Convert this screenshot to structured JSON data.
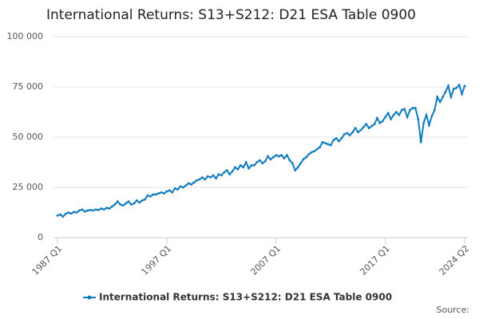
{
  "chart_data": {
    "type": "line",
    "title": "International Returns: S13+S212: D21 ESA Table 0900",
    "source": "Source:",
    "categories": [
      "1987 Q1",
      null,
      null,
      null,
      null,
      null,
      null,
      null,
      null,
      null,
      null,
      null,
      null,
      null,
      null,
      null,
      null,
      null,
      null,
      null,
      null,
      null,
      null,
      null,
      null,
      null,
      null,
      null,
      null,
      null,
      null,
      null,
      null,
      null,
      null,
      null,
      null,
      null,
      null,
      null,
      "1997 Q1",
      null,
      null,
      null,
      null,
      null,
      null,
      null,
      null,
      null,
      null,
      null,
      null,
      null,
      null,
      null,
      null,
      null,
      null,
      null,
      null,
      null,
      null,
      null,
      null,
      null,
      null,
      null,
      null,
      null,
      null,
      null,
      null,
      null,
      null,
      null,
      null,
      null,
      null,
      null,
      "2007 Q1",
      null,
      null,
      null,
      null,
      null,
      null,
      null,
      null,
      null,
      null,
      null,
      null,
      null,
      null,
      null,
      null,
      null,
      null,
      null,
      null,
      null,
      null,
      null,
      null,
      null,
      null,
      null,
      null,
      null,
      null,
      null,
      null,
      null,
      null,
      null,
      null,
      null,
      null,
      null,
      "2017 Q1",
      null,
      null,
      null,
      null,
      null,
      null,
      null,
      null,
      null,
      null,
      null,
      null,
      null,
      null,
      null,
      null,
      null,
      null,
      null,
      null,
      null,
      null,
      null,
      null,
      null,
      null,
      null,
      null,
      "2024 Q2"
    ],
    "series": [
      {
        "name": "International Returns: S13+S212: D21 ESA Table 0900",
        "color": "#0f7cbf",
        "values": [
          11000,
          11500,
          10500,
          11800,
          12500,
          12000,
          12800,
          12500,
          13500,
          14000,
          13000,
          13500,
          13800,
          13500,
          14000,
          13800,
          14500,
          14000,
          14800,
          14500,
          15500,
          16500,
          18000,
          16500,
          16000,
          17000,
          18000,
          16500,
          17000,
          18500,
          17500,
          18500,
          19000,
          21000,
          20500,
          21500,
          21500,
          22000,
          22500,
          22000,
          23000,
          23500,
          22500,
          24500,
          24000,
          25500,
          25000,
          26000,
          27000,
          26500,
          27500,
          28500,
          29000,
          30000,
          29000,
          30500,
          30000,
          31000,
          29500,
          31500,
          31000,
          32500,
          33500,
          31500,
          33000,
          35000,
          34000,
          36000,
          35000,
          37500,
          34500,
          36000,
          36000,
          37500,
          38500,
          37000,
          38000,
          40500,
          39000,
          40000,
          41000,
          40500,
          41000,
          39500,
          41000,
          38500,
          37000,
          33500,
          35000,
          37000,
          39000,
          40000,
          41500,
          42500,
          43000,
          44000,
          45000,
          47500,
          47000,
          46500,
          46000,
          48500,
          49500,
          48000,
          49500,
          51500,
          52000,
          51000,
          52500,
          54500,
          52500,
          53500,
          55000,
          56500,
          54500,
          55500,
          56500,
          59500,
          57000,
          58000,
          60000,
          62000,
          59000,
          61000,
          62500,
          61000,
          63500,
          64000,
          60000,
          63500,
          64500,
          64500,
          59000,
          47500,
          57000,
          61000,
          56000,
          60500,
          63500,
          70000,
          67500,
          70000,
          72500,
          75500,
          70000,
          74000,
          74500,
          76000,
          71500,
          75500
        ]
      }
    ],
    "ylim": [
      0,
      100000
    ],
    "yticks": [
      0,
      {
        "value": 25000,
        "label": "25 000"
      },
      {
        "value": 50000,
        "label": "50 000"
      },
      {
        "value": 75000,
        "label": "75 000"
      },
      {
        "value": 100000,
        "label": "100 000"
      }
    ],
    "grid": true
  }
}
